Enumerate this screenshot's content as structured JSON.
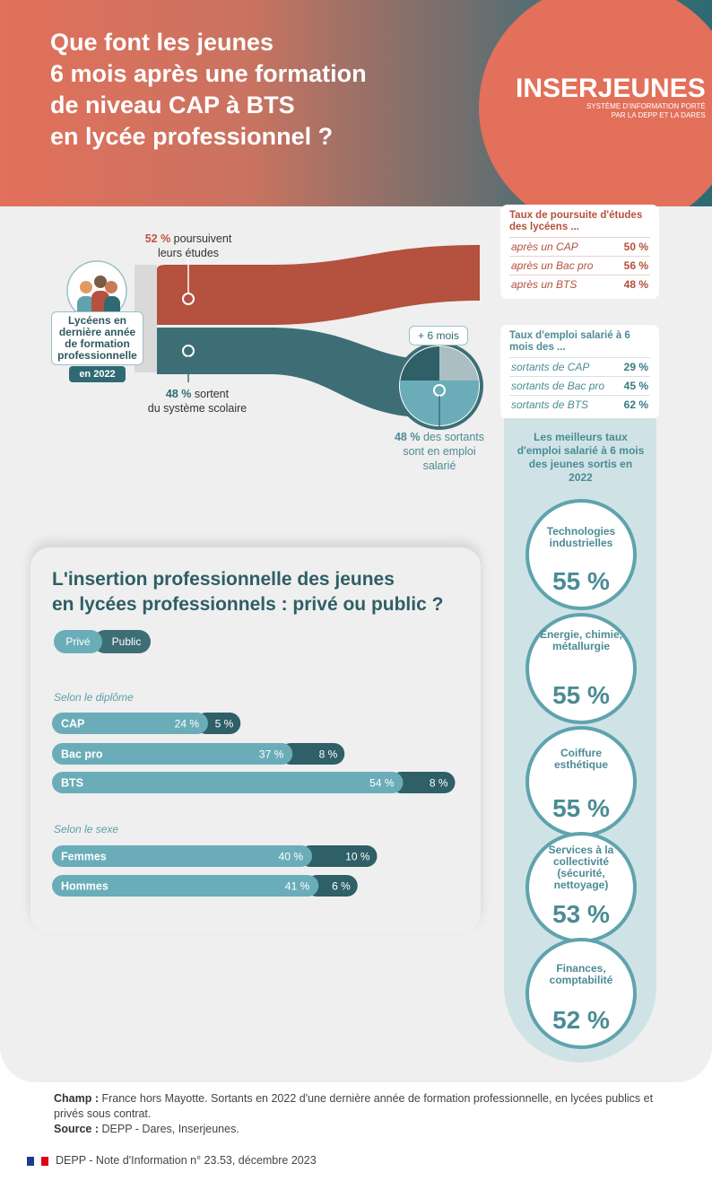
{
  "header": {
    "title": "Que font les jeunes\n6 mois après une formation\nde niveau CAP à BTS\nen lycée professionnel ?",
    "logo_brand": "INSERJEUNES",
    "logo_sub1": "SYSTÈME D'INFORMATION PORTÉ",
    "logo_sub2": "PAR LA DEPP ET LA DARES"
  },
  "flow": {
    "students_label": "Lycéens en dernière année de formation professionnelle",
    "students_year": "en 2022",
    "continue_pct": "52 %",
    "continue_text": "poursuivent leurs études",
    "leave_pct": "48 %",
    "leave_text1": "sortent",
    "leave_text2": "du système scolaire",
    "six_months": "+ 6 mois",
    "employed_pct": "48 %",
    "employed_text": "des sortants sont en emploi salarié"
  },
  "pursuit": {
    "title": "Taux de poursuite d'études des lycéens ...",
    "rows": [
      {
        "k": "après un CAP",
        "v": "50 %"
      },
      {
        "k": "après un Bac pro",
        "v": "56 %"
      },
      {
        "k": "après un BTS",
        "v": "48 %"
      }
    ]
  },
  "employment": {
    "title": "Taux d'emploi salarié à 6 mois des ...",
    "rows": [
      {
        "k": "sortants de CAP",
        "v": "29 %"
      },
      {
        "k": "sortants de Bac pro",
        "v": "45 %"
      },
      {
        "k": "sortants de BTS",
        "v": "62 %"
      }
    ]
  },
  "best": {
    "title": "Les meilleurs taux d'emploi salarié à 6 mois des jeunes sortis en 2022",
    "items": [
      {
        "label": "Technologies industrielles",
        "pct": "55 %"
      },
      {
        "label": "Énergie, chimie, métallurgie",
        "pct": "55 %"
      },
      {
        "label": "Coiffure esthétique",
        "pct": "55 %"
      },
      {
        "label": "Services à la collectivité (sécurité, nettoyage)",
        "pct": "53 %"
      },
      {
        "label": "Finances, comptabilité",
        "pct": "52 %"
      }
    ]
  },
  "lower": {
    "title": "L'insertion professionnelle des jeunes\nen lycées professionnels : privé ou public ?",
    "legend_prive": "Privé",
    "legend_public": "Public",
    "section_diplome": "Selon le diplôme",
    "section_sexe": "Selon le sexe"
  },
  "colors": {
    "prive": "#6aadb9",
    "public": "#2f5f67",
    "orange": "#b5503d",
    "teal": "#3d6e76"
  },
  "chart_data": {
    "type": "bar",
    "orientation": "horizontal",
    "groups": [
      {
        "name": "Selon le diplôme",
        "categories": [
          "CAP",
          "Bac pro",
          "BTS"
        ]
      },
      {
        "name": "Selon le sexe",
        "categories": [
          "Femmes",
          "Hommes"
        ]
      }
    ],
    "categories": [
      "CAP",
      "Bac pro",
      "BTS",
      "Femmes",
      "Hommes"
    ],
    "series": [
      {
        "name": "Privé",
        "values": [
          24,
          37,
          54,
          40,
          41
        ],
        "labels": [
          "24 %",
          "37 %",
          "54 %",
          "40 %",
          "41 %"
        ]
      },
      {
        "name": "Public",
        "values": [
          5,
          8,
          8,
          10,
          6
        ],
        "labels": [
          "5 %",
          "8 %",
          "8 %",
          "10 %",
          "6 %"
        ]
      }
    ]
  },
  "footer": {
    "champ_label": "Champ :",
    "champ_text": "France hors Mayotte. Sortants en 2022 d'une dernière année de formation professionnelle, en lycées publics et privés sous contrat.",
    "source_label": "Source :",
    "source_text": "DEPP - Dares, Inserjeunes.",
    "publication": "DEPP - Note d'Information n° 23.53, décembre 2023"
  }
}
